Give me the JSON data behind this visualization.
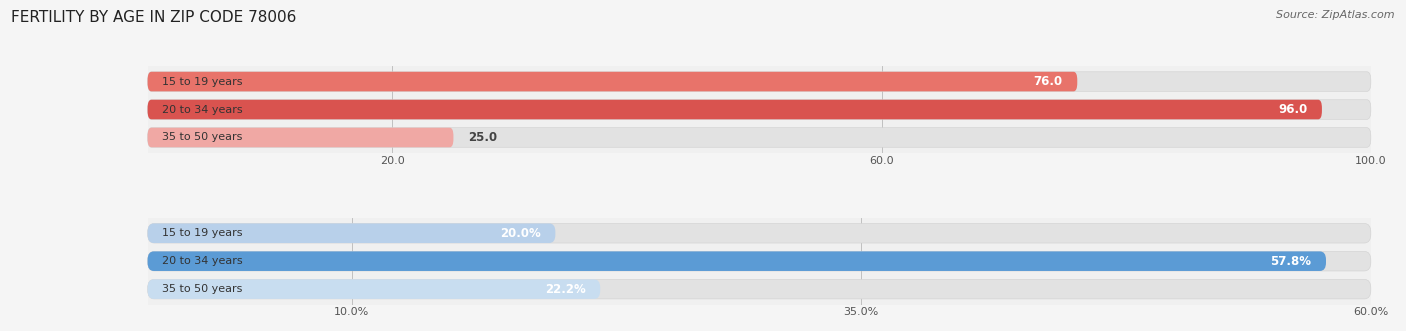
{
  "title": "FERTILITY BY AGE IN ZIP CODE 78006",
  "source_text": "Source: ZipAtlas.com",
  "top_bars": {
    "categories": [
      "15 to 19 years",
      "20 to 34 years",
      "35 to 50 years"
    ],
    "values": [
      76.0,
      96.0,
      25.0
    ],
    "value_labels": [
      "76.0",
      "96.0",
      "25.0"
    ],
    "xlim": [
      0,
      100
    ],
    "xticks": [
      20.0,
      60.0,
      100.0
    ],
    "xtick_labels": [
      "20.0",
      "60.0",
      "100.0"
    ],
    "bar_colors": [
      "#e8736a",
      "#d9534f",
      "#f0a8a4"
    ],
    "bar_bg_color": "#e8e8e8"
  },
  "bottom_bars": {
    "categories": [
      "15 to 19 years",
      "20 to 34 years",
      "35 to 50 years"
    ],
    "values": [
      20.0,
      57.8,
      22.2
    ],
    "value_labels": [
      "20.0%",
      "57.8%",
      "22.2%"
    ],
    "xlim": [
      0,
      60
    ],
    "xticks": [
      10.0,
      35.0,
      60.0
    ],
    "xtick_labels": [
      "10.0%",
      "35.0%",
      "60.0%"
    ],
    "bar_colors": [
      "#b8d0ea",
      "#5b9bd5",
      "#c8ddf0"
    ],
    "bar_bg_color": "#e8e8e8"
  },
  "bg_color": "#f5f5f5",
  "section_bg": "#f0f0f0",
  "title_fontsize": 11,
  "source_fontsize": 8,
  "label_fontsize": 8.5,
  "cat_fontsize": 8,
  "tick_fontsize": 8
}
